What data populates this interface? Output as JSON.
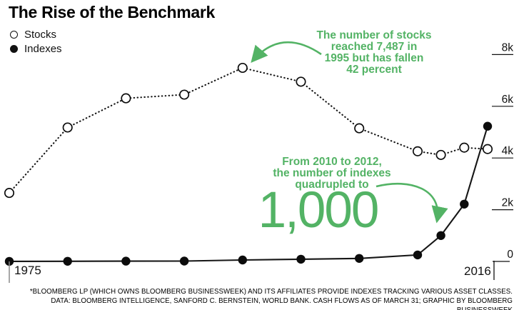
{
  "header": {
    "title": "The Rise of the Benchmark"
  },
  "legend": {
    "stocks": "Stocks",
    "indexes": "Indexes"
  },
  "annotations": {
    "stocks_note": "The number of stocks\nreached 7,487 in\n1995 but has fallen\n42 percent",
    "indexes_note": "From 2010 to 2012,\nthe number of indexes\nquadrupled to",
    "indexes_big_number": "1,000"
  },
  "footer": {
    "line1": "*BLOOMBERG LP (WHICH OWNS BLOOMBERG BUSINESSWEEK) AND ITS AFFILIATES PROVIDE INDEXES TRACKING VARIOUS ASSET CLASSES.",
    "line2": "DATA: BLOOMBERG INTELLIGENCE, SANFORD C. BERNSTEIN, WORLD BANK. CASH FLOWS AS OF MARCH 31; GRAPHIC BY BLOOMBERG BUSINESSWEEK"
  },
  "colors": {
    "accent_green": "#53b365",
    "line_black": "#111111"
  },
  "chart_data": {
    "type": "line",
    "title": "The Rise of the Benchmark",
    "x": [
      1975,
      1980,
      1985,
      1990,
      1995,
      2000,
      2005,
      2010,
      2012,
      2014,
      2016
    ],
    "series": [
      {
        "name": "Stocks",
        "style": "dotted-open-circles",
        "values": [
          2650,
          5180,
          6310,
          6450,
          7487,
          6950,
          5150,
          4260,
          4120,
          4400,
          4345
        ]
      },
      {
        "name": "Indexes",
        "style": "solid-filled-circles",
        "values": [
          2,
          5,
          10,
          15,
          55,
          85,
          115,
          250,
          1000,
          2215,
          5230
        ]
      }
    ],
    "ylim": [
      0,
      8400
    ],
    "yticks": [
      {
        "label": "8k",
        "value": 8000
      },
      {
        "label": "6k",
        "value": 6000
      },
      {
        "label": "4k",
        "value": 4000
      },
      {
        "label": "2k",
        "value": 2000
      },
      {
        "label": "0",
        "value": 0
      }
    ],
    "xticks": {
      "left": "1975",
      "right": "2016"
    },
    "grid": false,
    "legend_position": "top-left"
  }
}
